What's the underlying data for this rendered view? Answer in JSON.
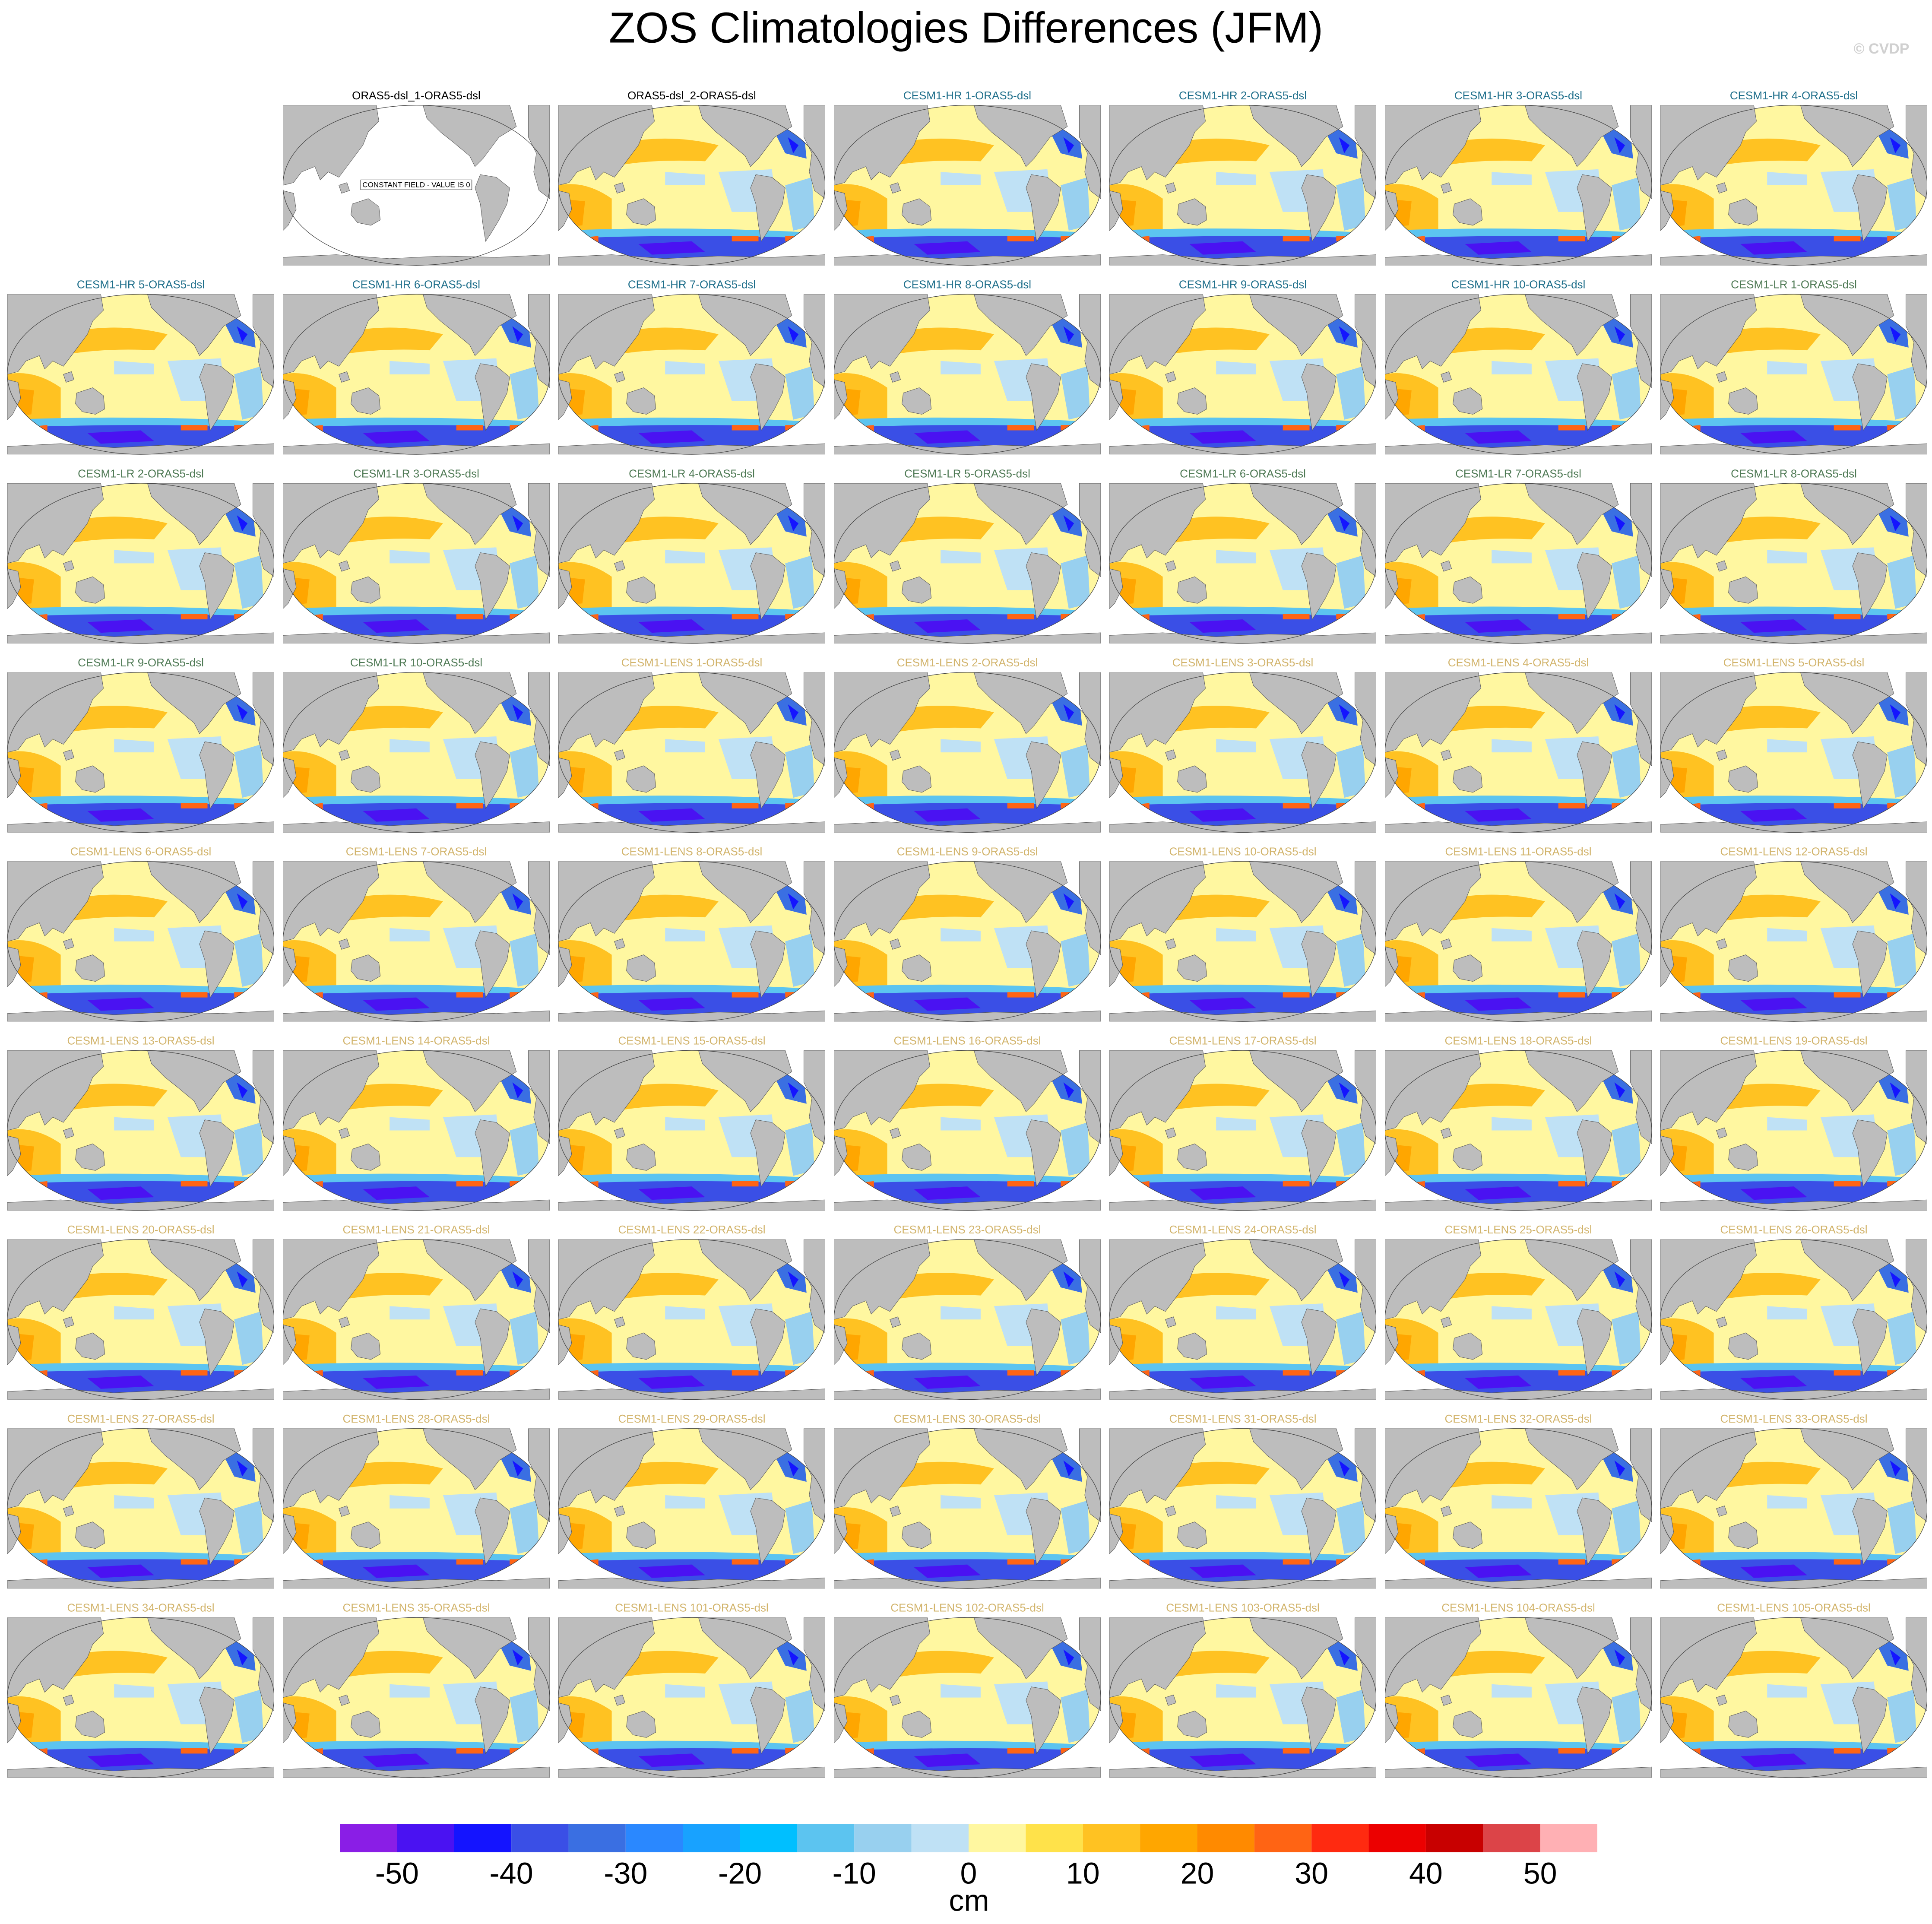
{
  "title": "ZOS Climatologies Differences (JFM)",
  "watermark": "© CVDP",
  "panels": [
    {
      "title": "ORAS5-dsl_1-ORAS5-dsl",
      "color": "#000000",
      "note": "CONSTANT FIELD - VALUE IS 0"
    },
    {
      "title": "ORAS5-dsl_2-ORAS5-dsl",
      "color": "#000000"
    },
    {
      "title": "CESM1-HR 1-ORAS5-dsl",
      "color": "#1f6f8b"
    },
    {
      "title": "CESM1-HR 2-ORAS5-dsl",
      "color": "#1f6f8b"
    },
    {
      "title": "CESM1-HR 3-ORAS5-dsl",
      "color": "#1f6f8b"
    },
    {
      "title": "CESM1-HR 4-ORAS5-dsl",
      "color": "#1f6f8b"
    },
    {
      "title": "CESM1-HR 5-ORAS5-dsl",
      "color": "#1f6f8b"
    },
    {
      "title": "CESM1-HR 6-ORAS5-dsl",
      "color": "#1f6f8b"
    },
    {
      "title": "CESM1-HR 7-ORAS5-dsl",
      "color": "#1f6f8b"
    },
    {
      "title": "CESM1-HR 8-ORAS5-dsl",
      "color": "#1f6f8b"
    },
    {
      "title": "CESM1-HR 9-ORAS5-dsl",
      "color": "#1f6f8b"
    },
    {
      "title": "CESM1-HR 10-ORAS5-dsl",
      "color": "#1f6f8b"
    },
    {
      "title": "CESM1-LR 1-ORAS5-dsl",
      "color": "#4f7a55"
    },
    {
      "title": "CESM1-LR 2-ORAS5-dsl",
      "color": "#4f7a55"
    },
    {
      "title": "CESM1-LR 3-ORAS5-dsl",
      "color": "#4f7a55"
    },
    {
      "title": "CESM1-LR 4-ORAS5-dsl",
      "color": "#4f7a55"
    },
    {
      "title": "CESM1-LR 5-ORAS5-dsl",
      "color": "#4f7a55"
    },
    {
      "title": "CESM1-LR 6-ORAS5-dsl",
      "color": "#4f7a55"
    },
    {
      "title": "CESM1-LR 7-ORAS5-dsl",
      "color": "#4f7a55"
    },
    {
      "title": "CESM1-LR 8-ORAS5-dsl",
      "color": "#4f7a55"
    },
    {
      "title": "CESM1-LR 9-ORAS5-dsl",
      "color": "#4f7a55"
    },
    {
      "title": "CESM1-LR 10-ORAS5-dsl",
      "color": "#4f7a55"
    },
    {
      "title": "CESM1-LENS 1-ORAS5-dsl",
      "color": "#d2b46c"
    },
    {
      "title": "CESM1-LENS 2-ORAS5-dsl",
      "color": "#d2b46c"
    },
    {
      "title": "CESM1-LENS 3-ORAS5-dsl",
      "color": "#d2b46c"
    },
    {
      "title": "CESM1-LENS 4-ORAS5-dsl",
      "color": "#d2b46c"
    },
    {
      "title": "CESM1-LENS 5-ORAS5-dsl",
      "color": "#d2b46c"
    },
    {
      "title": "CESM1-LENS 6-ORAS5-dsl",
      "color": "#d2b46c"
    },
    {
      "title": "CESM1-LENS 7-ORAS5-dsl",
      "color": "#d2b46c"
    },
    {
      "title": "CESM1-LENS 8-ORAS5-dsl",
      "color": "#d2b46c"
    },
    {
      "title": "CESM1-LENS 9-ORAS5-dsl",
      "color": "#d2b46c"
    },
    {
      "title": "CESM1-LENS 10-ORAS5-dsl",
      "color": "#d2b46c"
    },
    {
      "title": "CESM1-LENS 11-ORAS5-dsl",
      "color": "#d2b46c"
    },
    {
      "title": "CESM1-LENS 12-ORAS5-dsl",
      "color": "#d2b46c"
    },
    {
      "title": "CESM1-LENS 13-ORAS5-dsl",
      "color": "#d2b46c"
    },
    {
      "title": "CESM1-LENS 14-ORAS5-dsl",
      "color": "#d2b46c"
    },
    {
      "title": "CESM1-LENS 15-ORAS5-dsl",
      "color": "#d2b46c"
    },
    {
      "title": "CESM1-LENS 16-ORAS5-dsl",
      "color": "#d2b46c"
    },
    {
      "title": "CESM1-LENS 17-ORAS5-dsl",
      "color": "#d2b46c"
    },
    {
      "title": "CESM1-LENS 18-ORAS5-dsl",
      "color": "#d2b46c"
    },
    {
      "title": "CESM1-LENS 19-ORAS5-dsl",
      "color": "#d2b46c"
    },
    {
      "title": "CESM1-LENS 20-ORAS5-dsl",
      "color": "#d2b46c"
    },
    {
      "title": "CESM1-LENS 21-ORAS5-dsl",
      "color": "#d2b46c"
    },
    {
      "title": "CESM1-LENS 22-ORAS5-dsl",
      "color": "#d2b46c"
    },
    {
      "title": "CESM1-LENS 23-ORAS5-dsl",
      "color": "#d2b46c"
    },
    {
      "title": "CESM1-LENS 24-ORAS5-dsl",
      "color": "#d2b46c"
    },
    {
      "title": "CESM1-LENS 25-ORAS5-dsl",
      "color": "#d2b46c"
    },
    {
      "title": "CESM1-LENS 26-ORAS5-dsl",
      "color": "#d2b46c"
    },
    {
      "title": "CESM1-LENS 27-ORAS5-dsl",
      "color": "#d2b46c"
    },
    {
      "title": "CESM1-LENS 28-ORAS5-dsl",
      "color": "#d2b46c"
    },
    {
      "title": "CESM1-LENS 29-ORAS5-dsl",
      "color": "#d2b46c"
    },
    {
      "title": "CESM1-LENS 30-ORAS5-dsl",
      "color": "#d2b46c"
    },
    {
      "title": "CESM1-LENS 31-ORAS5-dsl",
      "color": "#d2b46c"
    },
    {
      "title": "CESM1-LENS 32-ORAS5-dsl",
      "color": "#d2b46c"
    },
    {
      "title": "CESM1-LENS 33-ORAS5-dsl",
      "color": "#d2b46c"
    },
    {
      "title": "CESM1-LENS 34-ORAS5-dsl",
      "color": "#d2b46c"
    },
    {
      "title": "CESM1-LENS 35-ORAS5-dsl",
      "color": "#d2b46c"
    },
    {
      "title": "CESM1-LENS 101-ORAS5-dsl",
      "color": "#d2b46c"
    },
    {
      "title": "CESM1-LENS 102-ORAS5-dsl",
      "color": "#d2b46c"
    },
    {
      "title": "CESM1-LENS 103-ORAS5-dsl",
      "color": "#d2b46c"
    },
    {
      "title": "CESM1-LENS 104-ORAS5-dsl",
      "color": "#d2b46c"
    },
    {
      "title": "CESM1-LENS 105-ORAS5-dsl",
      "color": "#d2b46c"
    }
  ],
  "colorbar": {
    "label": "cm",
    "levels": [
      -55,
      -50,
      -45,
      -40,
      -35,
      -30,
      -25,
      -20,
      -15,
      -10,
      -5,
      0,
      5,
      10,
      15,
      20,
      25,
      30,
      35,
      40,
      45,
      50,
      55
    ],
    "colors": [
      "#8a1ee6",
      "#4a12f2",
      "#1414ff",
      "#3a4fe6",
      "#3a6fe2",
      "#2a88ff",
      "#18a2ff",
      "#00bfff",
      "#5cc4f0",
      "#98d0ef",
      "#bfe1f5",
      "#fff7a0",
      "#ffe24a",
      "#ffc222",
      "#ffa600",
      "#ff8a00",
      "#ff6414",
      "#ff2a10",
      "#ec0000",
      "#c80000",
      "#dc4448",
      "#ffb0b4"
    ],
    "ticks": [
      -50,
      -40,
      -30,
      -20,
      -10,
      0,
      10,
      20,
      30,
      40,
      50
    ]
  }
}
